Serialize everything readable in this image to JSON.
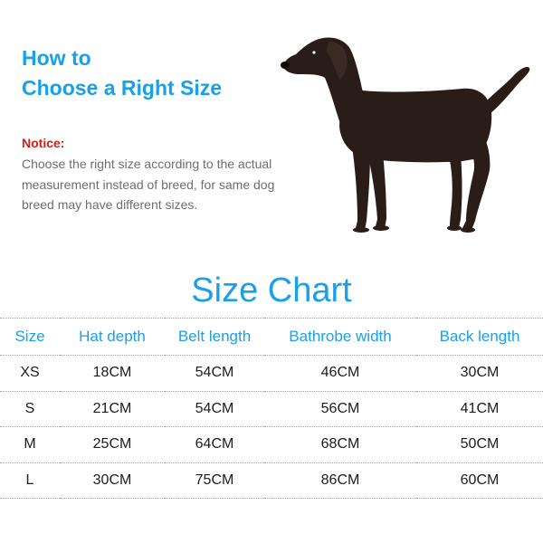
{
  "header": {
    "line1": "How to",
    "line2": "Choose a Right Size"
  },
  "notice": {
    "title": "Notice:",
    "body": "Choose the right size according to the actual measurement instead of breed, for same dog breed may have different sizes."
  },
  "illustration": {
    "icon": "dog-silhouette-icon"
  },
  "size_chart": {
    "title": "Size Chart",
    "columns": [
      "Size",
      "Hat depth",
      "Belt length",
      "Bathrobe width",
      "Back length"
    ],
    "rows": [
      [
        "XS",
        "18CM",
        "54CM",
        "46CM",
        "30CM"
      ],
      [
        "S",
        "21CM",
        "54CM",
        "56CM",
        "41CM"
      ],
      [
        "M",
        "25CM",
        "64CM",
        "68CM",
        "50CM"
      ],
      [
        "L",
        "30CM",
        "75CM",
        "86CM",
        "60CM"
      ]
    ]
  },
  "colors": {
    "accent": "#1aa0e8",
    "notice": "#d0201a",
    "body_text": "#6e6e6e",
    "dog": "#2a1c18"
  }
}
